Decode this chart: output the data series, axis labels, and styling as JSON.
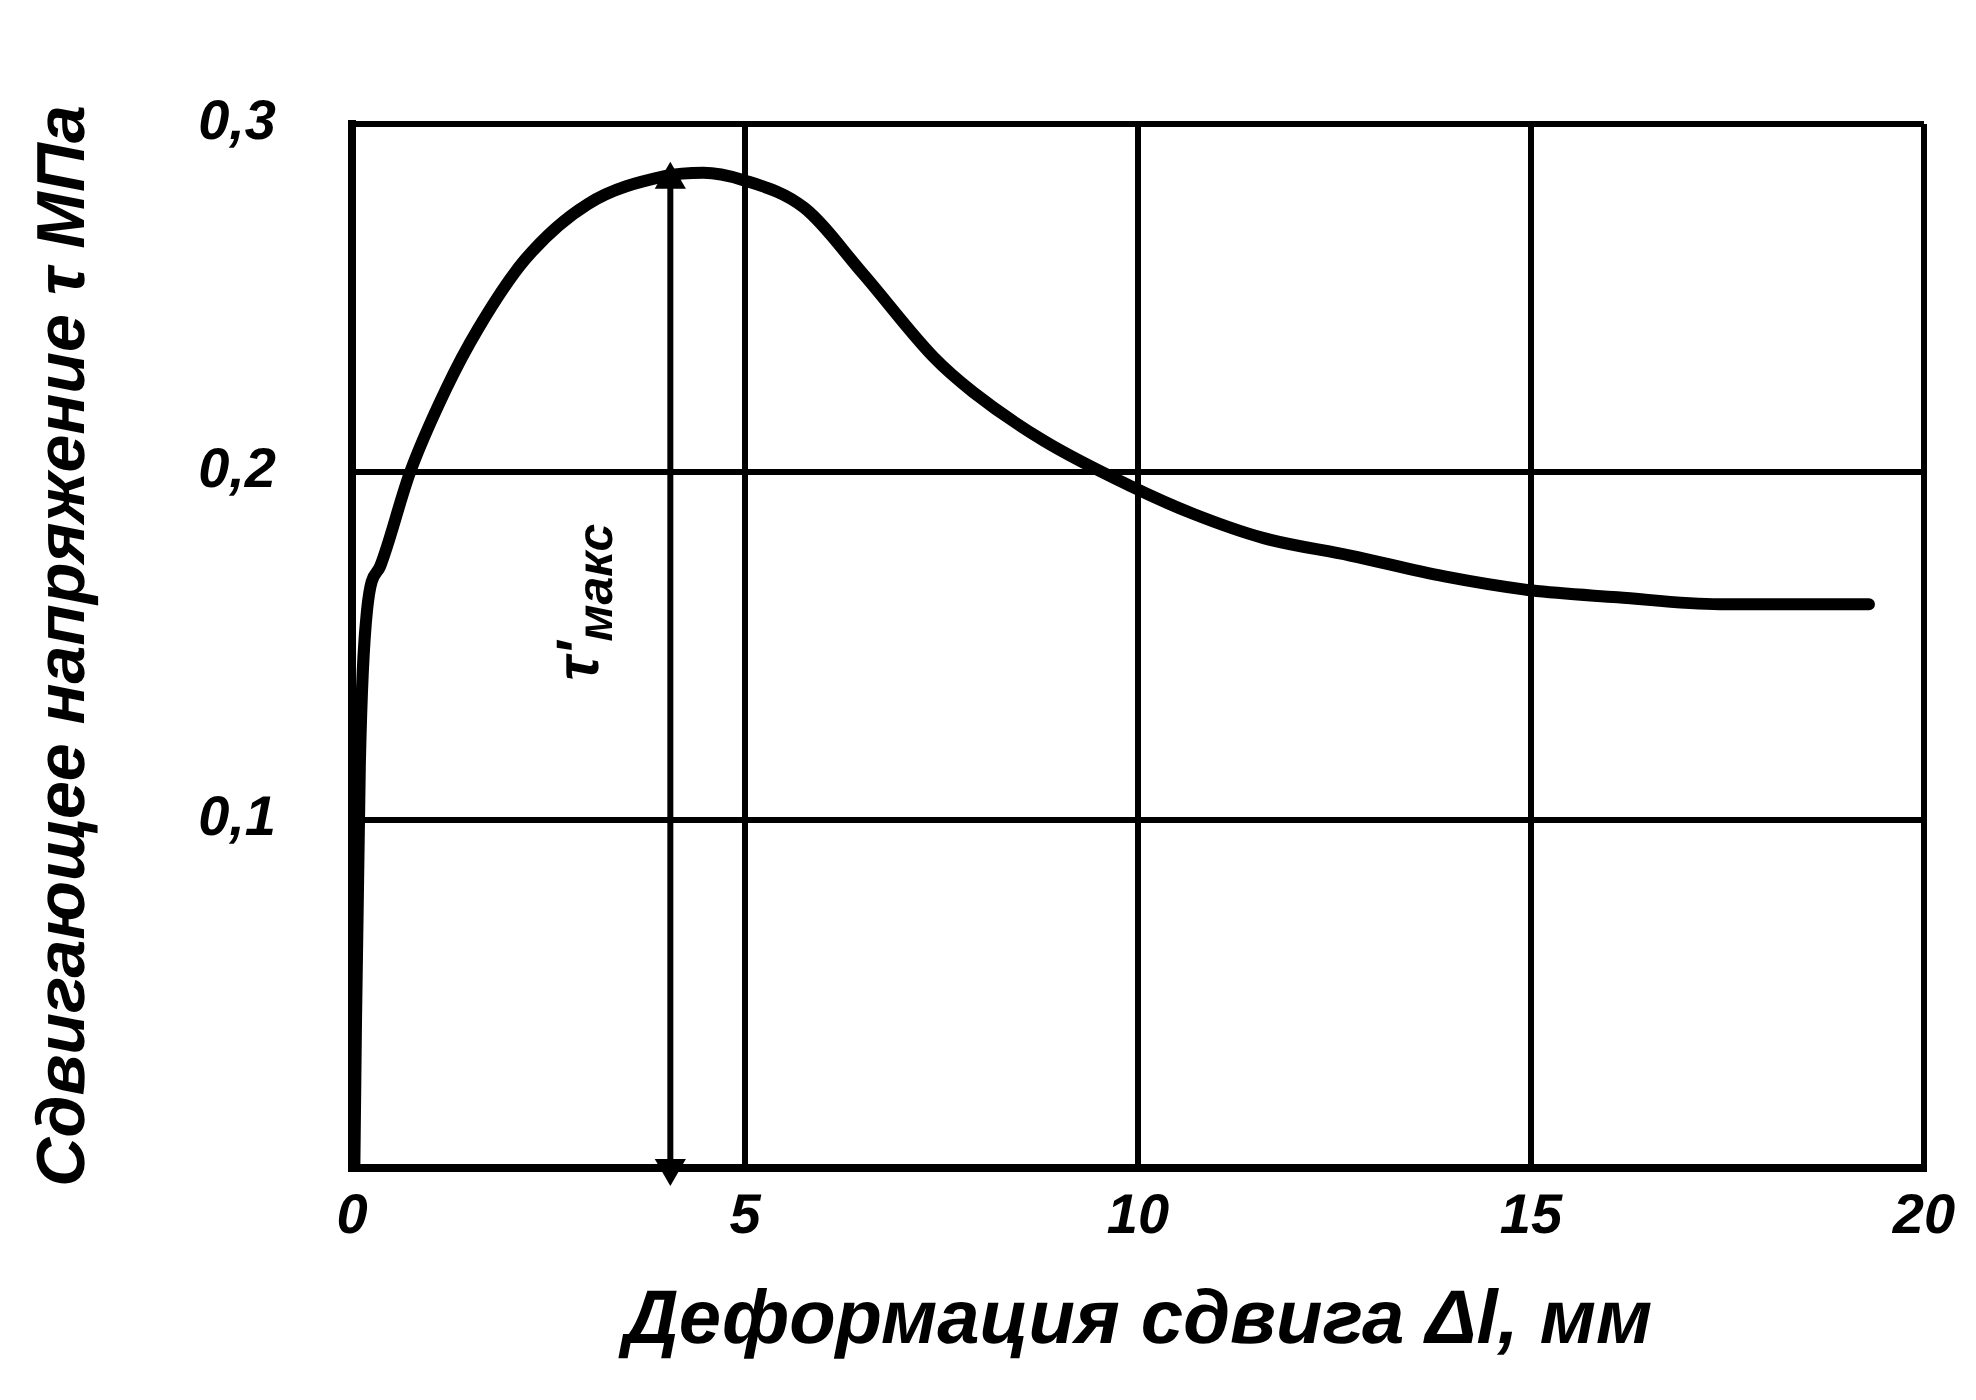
{
  "chart_data": {
    "type": "line",
    "xlabel": "Деформация сдвига Δl, мм",
    "ylabel": "Сдвигающее напряжение τ МПа",
    "x": [
      0.03,
      0.05,
      0.1,
      0.19,
      0.36,
      0.74,
      1.2,
      1.6,
      2.2,
      3.0,
      3.98,
      4.47,
      4.96,
      5.75,
      6.5,
      7.4,
      7.9,
      8.8,
      9.9,
      10.7,
      11.6,
      12.7,
      13.9,
      15,
      16.1,
      17.4,
      19.3
    ],
    "series": [
      {
        "color": "#000000",
        "values": [
          0.0,
          0.04,
          0.116,
          0.16,
          0.173,
          0.2,
          0.224,
          0.241,
          0.261,
          0.277,
          0.285,
          0.286,
          0.284,
          0.276,
          0.257,
          0.233,
          0.223,
          0.209,
          0.196,
          0.188,
          0.181,
          0.176,
          0.17,
          0.166,
          0.164,
          0.162,
          0.162
        ]
      },
      {
        "name": "τ'$_{макс}$",
        "color": "#000000",
        "x": [
          4.05,
          4.05
        ],
        "values": [
          0,
          0.284
        ],
        "marker": "triangle"
      }
    ],
    "xlim": [
      0,
      20
    ],
    "xticks": [
      0,
      5,
      10,
      15,
      20
    ],
    "ylim": [
      0,
      0.3
    ],
    "yticks": [
      {
        "value": 0.1,
        "label": "0,1"
      },
      {
        "value": 0.2,
        "label": "0,2"
      },
      {
        "value": 0.3,
        "label": "0,3"
      }
    ],
    "grid": true
  }
}
